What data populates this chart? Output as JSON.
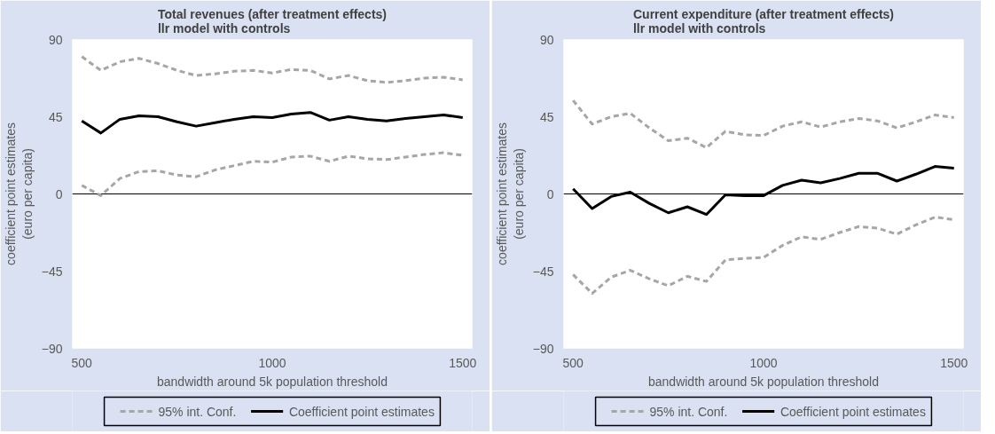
{
  "chart_data": [
    {
      "type": "line",
      "title": "Total revenues (after treatment effects)\nllr model with controls",
      "xlabel": "bandwidth around 5k population threshold",
      "ylabel": "coefficient point estimates\n(euro per capita)",
      "x": [
        500,
        550,
        600,
        650,
        700,
        750,
        800,
        850,
        900,
        950,
        1000,
        1050,
        1100,
        1150,
        1200,
        1250,
        1300,
        1350,
        1400,
        1450,
        1500
      ],
      "xlim": [
        475,
        1525
      ],
      "xticks": [
        500,
        1000,
        1500
      ],
      "ylim": [
        -90,
        90
      ],
      "yticks": [
        -90,
        -45,
        0,
        45,
        90
      ],
      "grid": false,
      "legend": "bottom",
      "ref_lines": [
        {
          "axis": "y",
          "value": 0,
          "color": "#000000"
        }
      ],
      "series": [
        {
          "name": "95% int. Conf.",
          "color": "#a6a6a6",
          "line_style": "dashed",
          "values": [
            80,
            72,
            77,
            79,
            76,
            72,
            69,
            70,
            71.5,
            72,
            70.5,
            72.5,
            72,
            67,
            69,
            66,
            65,
            66,
            67.5,
            68,
            66.5
          ]
        },
        {
          "name": "95% int. Conf.",
          "color": "#a6a6a6",
          "line_style": "dashed",
          "values": [
            5,
            -1,
            9,
            13,
            13.5,
            11,
            10,
            14,
            16.5,
            19,
            18.5,
            21.5,
            22,
            19,
            22,
            20.5,
            20,
            21.5,
            23,
            24,
            22.5
          ]
        },
        {
          "name": "Coefficient point estimates",
          "color": "#000000",
          "line_style": "solid",
          "values": [
            42.5,
            35.5,
            43.5,
            45.5,
            45,
            42,
            39.5,
            41.5,
            43.5,
            45,
            44.5,
            46.5,
            47.5,
            43,
            45,
            43.5,
            42.5,
            44,
            45,
            46,
            44.5
          ]
        }
      ]
    },
    {
      "type": "line",
      "title": "Current expenditure (after treatment effects)\nllr model with controls",
      "xlabel": "bandwidth around 5k population threshold",
      "ylabel": "coefficient point estimates\n(euro per capita)",
      "x": [
        500,
        550,
        600,
        650,
        700,
        750,
        800,
        850,
        900,
        950,
        1000,
        1050,
        1100,
        1150,
        1200,
        1250,
        1300,
        1350,
        1400,
        1450,
        1500
      ],
      "xlim": [
        475,
        1525
      ],
      "xticks": [
        500,
        1000,
        1500
      ],
      "ylim": [
        -90,
        90
      ],
      "yticks": [
        -90,
        -45,
        0,
        45,
        90
      ],
      "grid": false,
      "legend": "bottom",
      "ref_lines": [
        {
          "axis": "y",
          "value": 0,
          "color": "#000000"
        }
      ],
      "series": [
        {
          "name": "95% int. Conf.",
          "color": "#a6a6a6",
          "line_style": "dashed",
          "values": [
            54.5,
            40.7,
            45,
            47,
            38.5,
            31,
            32.5,
            27,
            36.5,
            34.5,
            34,
            39.5,
            42,
            39,
            42,
            44,
            42.5,
            38.5,
            42,
            46,
            44.5
          ]
        },
        {
          "name": "95% int. Conf.",
          "color": "#a6a6a6",
          "line_style": "dashed",
          "values": [
            -47,
            -58,
            -48.5,
            -44.5,
            -49.5,
            -53.5,
            -48,
            -51,
            -38.5,
            -37.5,
            -37,
            -30,
            -25,
            -26.5,
            -22.5,
            -19,
            -20,
            -23.5,
            -18,
            -13.5,
            -15
          ]
        },
        {
          "name": "Coefficient point estimates",
          "color": "#000000",
          "line_style": "solid",
          "values": [
            3,
            -8.5,
            -1.5,
            1,
            -5.5,
            -11,
            -7.5,
            -12,
            -0.5,
            -1,
            -1,
            5,
            8,
            6.5,
            9,
            12,
            12,
            7.5,
            11.5,
            16,
            15
          ]
        }
      ]
    }
  ]
}
